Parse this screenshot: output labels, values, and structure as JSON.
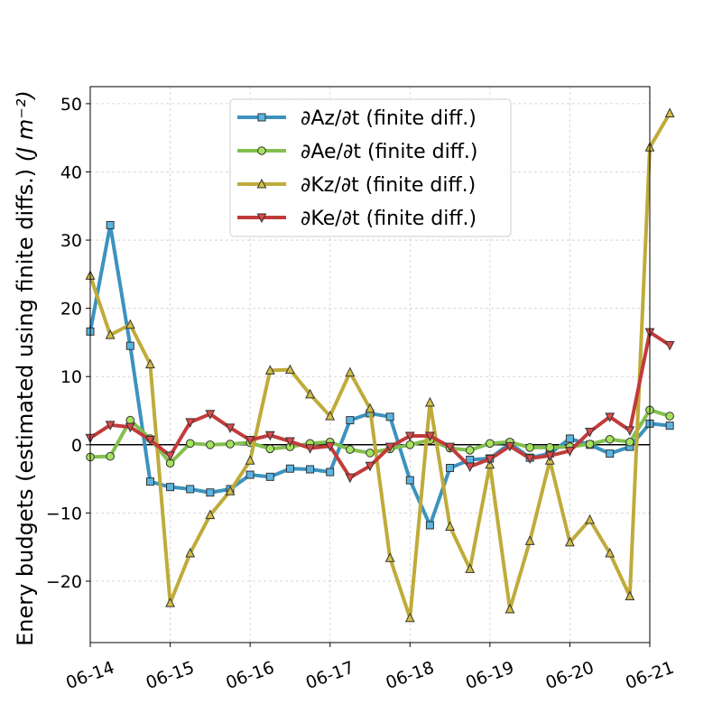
{
  "chart_data": {
    "type": "line",
    "ylabel": "Enery budgets (estimated using finite diffs.)",
    "ylabel_unit": "(J m⁻²)",
    "x_tick_labels": [
      "06-14",
      "06-15",
      "06-16",
      "06-17",
      "06-18",
      "06-19",
      "06-20",
      "06-21"
    ],
    "y_tick_labels": [
      "−20",
      "−10",
      "0",
      "10",
      "20",
      "30",
      "40",
      "50"
    ],
    "xlim": [
      0,
      7
    ],
    "ylim": [
      -29,
      52.5
    ],
    "y_ticks": [
      -20,
      -10,
      0,
      10,
      20,
      30,
      40,
      50
    ],
    "x_ticks": [
      0,
      1,
      2,
      3,
      4,
      5,
      6,
      7
    ],
    "grid": true,
    "zero_line": true,
    "legend_position": "upper center",
    "x_day_step": 0.25,
    "series": [
      {
        "name": "∂Az/∂t (finite diff.)",
        "color": "#3b93be",
        "marker_fill": "#5bb5e0",
        "marker": "square",
        "values": [
          16.6,
          32.2,
          14.5,
          -5.4,
          -6.2,
          -6.5,
          -7.0,
          -6.5,
          -4.4,
          -4.7,
          -3.5,
          -3.6,
          -4.0,
          3.6,
          4.6,
          4.1,
          -5.2,
          -11.8,
          -3.4,
          -2.2,
          -2.0,
          0.2,
          -1.9,
          -1.3,
          0.9,
          0.0,
          -1.3,
          -0.3,
          3.1,
          2.8
        ]
      },
      {
        "name": "∂Ae/∂t (finite diff.)",
        "color": "#83bf4f",
        "marker_fill": "#a5e35d",
        "marker": "circle",
        "values": [
          -1.8,
          -1.7,
          3.6,
          0.9,
          -2.7,
          0.2,
          0.0,
          0.1,
          0.3,
          -0.6,
          -0.3,
          0.2,
          0.4,
          -0.7,
          -1.2,
          -0.6,
          0.0,
          0.7,
          -0.5,
          -0.8,
          0.2,
          0.4,
          -0.4,
          -0.4,
          -0.3,
          0.1,
          0.8,
          0.4,
          5.1,
          4.2
        ]
      },
      {
        "name": "∂Kz/∂t (finite diff.)",
        "color": "#bfab3a",
        "marker_fill": "#d2be46",
        "marker": "triangle-up",
        "values": [
          24.8,
          16.1,
          17.6,
          11.8,
          -23.2,
          -15.9,
          -10.3,
          -6.8,
          -2.3,
          10.9,
          11.0,
          7.4,
          4.2,
          10.6,
          5.3,
          -16.6,
          -25.4,
          6.2,
          -12.0,
          -18.2,
          -2.9,
          -24.1,
          -14.1,
          -2.3,
          -14.3,
          -11.0,
          -15.9,
          -22.2,
          43.6,
          48.6
        ]
      },
      {
        "name": "∂Ke/∂t (finite diff.)",
        "color": "#c23b3b",
        "marker_fill": "#d94a4a",
        "marker": "triangle-down",
        "values": [
          1.0,
          2.9,
          2.6,
          0.7,
          -1.6,
          3.3,
          4.5,
          2.5,
          0.7,
          1.4,
          0.5,
          -0.5,
          -0.2,
          -4.8,
          -3.1,
          -0.3,
          1.3,
          1.3,
          -0.3,
          -3.2,
          -2.1,
          -0.2,
          -2.0,
          -1.6,
          -0.9,
          1.9,
          4.1,
          2.1,
          16.5,
          14.6
        ]
      }
    ]
  }
}
